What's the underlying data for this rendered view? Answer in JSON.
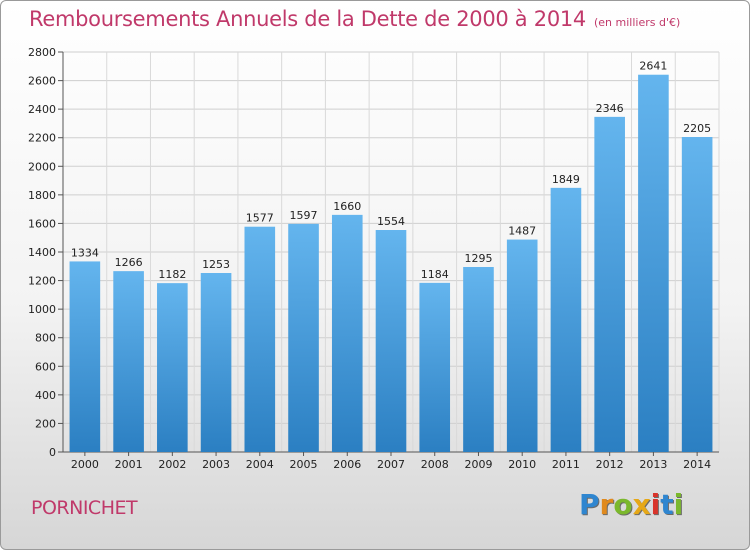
{
  "header": {
    "title": "Remboursements Annuels de la Dette de 2000 à 2014",
    "unit": "(en milliers d'€)"
  },
  "footer": {
    "town": "PORNICHET",
    "logo": [
      "P",
      "r",
      "o",
      "x",
      "i",
      "t",
      "i"
    ]
  },
  "colors": {
    "title": "#c0396a",
    "bar_top": "#64b5ee",
    "bar_bottom": "#2b7fc2",
    "logo": [
      "#2f86d0",
      "#e08a1e",
      "#7bb82d",
      "#e6a817",
      "#d9342b",
      "#2f86d0",
      "#7bb82d"
    ]
  },
  "chart_data": {
    "type": "bar",
    "categories": [
      "2000",
      "2001",
      "2002",
      "2003",
      "2004",
      "2005",
      "2006",
      "2007",
      "2008",
      "2009",
      "2010",
      "2011",
      "2012",
      "2013",
      "2014"
    ],
    "values": [
      1334,
      1266,
      1182,
      1253,
      1577,
      1597,
      1660,
      1554,
      1184,
      1295,
      1487,
      1849,
      2346,
      2641,
      2205
    ],
    "ylim": [
      0,
      2800
    ],
    "yticks": [
      0,
      200,
      400,
      600,
      800,
      1000,
      1200,
      1400,
      1600,
      1800,
      2000,
      2200,
      2400,
      2600,
      2800
    ],
    "grid": true
  }
}
